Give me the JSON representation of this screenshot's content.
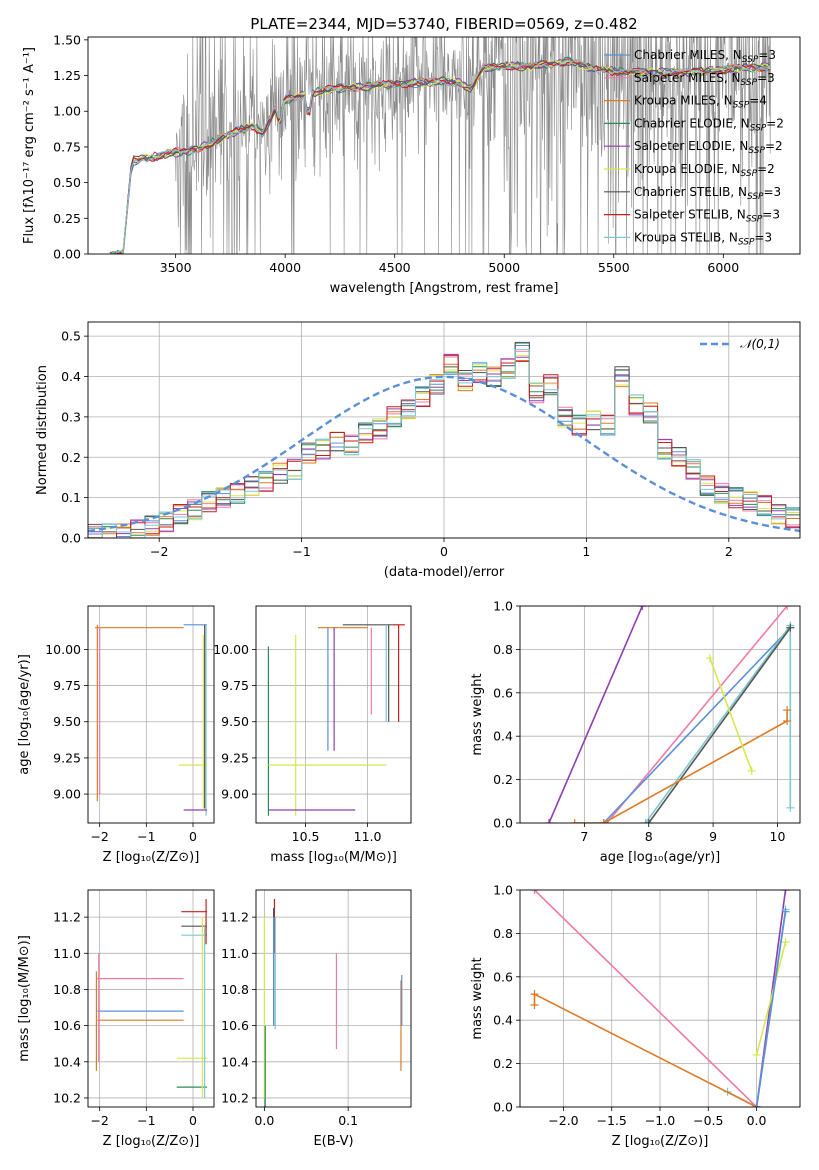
{
  "colors": {
    "chabrier_miles": "#5b8fd9",
    "salpeter_miles": "#f07aa6",
    "kroupa_miles": "#e07a24",
    "chabrier_elodie": "#2e8b57",
    "salpeter_elodie": "#8e3fb0",
    "kroupa_elodie": "#d6e84e",
    "chabrier_stelib": "#555555",
    "salpeter_stelib": "#c81f1f",
    "kroupa_stelib": "#7ec8d0",
    "data": "#8a8a8a",
    "gauss": "#5b8fd9"
  },
  "legend": [
    {
      "name": "Chabrier MILES",
      "n": "3",
      "color_key": "chabrier_miles"
    },
    {
      "name": "Salpeter MILES",
      "n": "3",
      "color_key": "salpeter_miles"
    },
    {
      "name": "Kroupa MILES",
      "n": "4",
      "color_key": "kroupa_miles"
    },
    {
      "name": "Chabrier ELODIE",
      "n": "2",
      "color_key": "chabrier_elodie"
    },
    {
      "name": "Salpeter ELODIE",
      "n": "2",
      "color_key": "salpeter_elodie"
    },
    {
      "name": "Kroupa ELODIE",
      "n": "2",
      "color_key": "kroupa_elodie"
    },
    {
      "name": "Chabrier STELIB",
      "n": "3",
      "color_key": "chabrier_stelib"
    },
    {
      "name": "Salpeter STELIB",
      "n": "3",
      "color_key": "salpeter_stelib"
    },
    {
      "name": "Kroupa STELIB",
      "n": "3",
      "color_key": "kroupa_stelib"
    }
  ],
  "chart_data": [
    {
      "id": "spectrum",
      "type": "line",
      "title": "PLATE=2344, MJD=53740, FIBERID=0569, z=0.482",
      "xlabel": "wavelength [Angstrom, rest frame]",
      "ylabel": "Flux [fλ10⁻¹⁷ erg cm⁻² s⁻¹ A⁻¹]",
      "xlim": [
        3100,
        6350
      ],
      "ylim": [
        0,
        1.52
      ],
      "xticks": [
        3500,
        4000,
        4500,
        5000,
        5500,
        6000
      ],
      "yticks": [
        0.0,
        0.25,
        0.5,
        0.75,
        1.0,
        1.25,
        1.5
      ],
      "grid": false,
      "legend_position": "top-right",
      "model_continuum": {
        "x": [
          3200,
          3260,
          3300,
          3350,
          3400,
          3450,
          3500,
          3550,
          3600,
          3650,
          3700,
          3750,
          3800,
          3850,
          3900,
          3950,
          4000,
          4050,
          4100,
          4150,
          4200,
          4300,
          4400,
          4500,
          4600,
          4700,
          4800,
          4850,
          4900,
          5000,
          5100,
          5200,
          5300,
          5400,
          5500,
          5600,
          5700,
          5800,
          5900,
          6000,
          6100,
          6200
        ],
        "y": [
          0.0,
          0.0,
          0.65,
          0.67,
          0.68,
          0.7,
          0.71,
          0.72,
          0.74,
          0.77,
          0.8,
          0.84,
          0.87,
          0.9,
          0.85,
          1.0,
          1.08,
          1.1,
          1.12,
          1.14,
          1.15,
          1.17,
          1.18,
          1.19,
          1.2,
          1.21,
          1.2,
          1.15,
          1.3,
          1.32,
          1.31,
          1.33,
          1.35,
          1.3,
          1.28,
          1.27,
          1.27,
          1.27,
          1.28,
          1.29,
          1.3,
          1.31
        ]
      },
      "data_range": [
        3200,
        6220
      ]
    },
    {
      "id": "residuals",
      "type": "histogram",
      "xlabel": "(data-model)/error",
      "ylabel": "Normed distribution",
      "xlim": [
        -2.5,
        2.5
      ],
      "ylim": [
        0,
        0.535
      ],
      "xticks": [
        -2,
        -1,
        0,
        1,
        2
      ],
      "yticks": [
        0.0,
        0.1,
        0.2,
        0.3,
        0.4,
        0.5
      ],
      "grid": true,
      "legend": "𝒩(0,1)",
      "legend_position": "top-right",
      "bin_edges_start": -2.5,
      "bin_width": 0.1,
      "values": [
        0.01,
        0.01,
        0.01,
        0.02,
        0.03,
        0.04,
        0.06,
        0.07,
        0.09,
        0.1,
        0.11,
        0.13,
        0.14,
        0.16,
        0.17,
        0.21,
        0.22,
        0.24,
        0.23,
        0.26,
        0.27,
        0.3,
        0.32,
        0.35,
        0.38,
        0.43,
        0.39,
        0.41,
        0.4,
        0.42,
        0.46,
        0.36,
        0.38,
        0.3,
        0.28,
        0.29,
        0.28,
        0.4,
        0.33,
        0.31,
        0.22,
        0.2,
        0.17,
        0.13,
        0.11,
        0.1,
        0.09,
        0.08,
        0.06,
        0.05,
        0.04
      ]
    },
    {
      "id": "z_age",
      "type": "errorbar",
      "xlabel": "Z [log₁₀(Z/Z⊙)]",
      "ylabel": "age  [log₁₀(age/yr)]",
      "xlim": [
        -2.25,
        0.45
      ],
      "ylim": [
        8.8,
        10.3
      ],
      "xticks": [
        -2,
        -1,
        0
      ],
      "yticks": [
        9.0,
        9.25,
        9.5,
        9.75,
        10.0
      ],
      "grid": true
    },
    {
      "id": "mass_age",
      "type": "errorbar",
      "xlabel": "mass [log₁₀(M/M⊙)]",
      "xlim": [
        10.1,
        11.35
      ],
      "ylim": [
        8.8,
        10.3
      ],
      "xticks": [
        10.5,
        11.0
      ],
      "yticks": [
        9.0,
        9.25,
        9.5,
        9.75,
        10.0
      ],
      "grid": true
    },
    {
      "id": "age_weight",
      "type": "line",
      "xlabel": "age  [log₁₀(age/yr)]",
      "ylabel": "mass weight",
      "xlim": [
        6.0,
        10.35
      ],
      "ylim": [
        0,
        1.0
      ],
      "xticks": [
        7,
        8,
        9,
        10
      ],
      "yticks": [
        0.0,
        0.2,
        0.4,
        0.6,
        0.8,
        1.0
      ],
      "grid": true
    },
    {
      "id": "z_mass",
      "type": "errorbar",
      "xlabel": "Z [log₁₀(Z/Z⊙)]",
      "ylabel": "mass [log₁₀(M/M⊙)]",
      "xlim": [
        -2.25,
        0.45
      ],
      "ylim": [
        10.15,
        11.35
      ],
      "xticks": [
        -2,
        -1,
        0
      ],
      "yticks": [
        10.2,
        10.4,
        10.6,
        10.8,
        11.0,
        11.2
      ],
      "grid": true
    },
    {
      "id": "ebv_mass",
      "type": "errorbar",
      "xlabel": "E(B-V)",
      "xlim": [
        -0.01,
        0.175
      ],
      "ylim": [
        10.15,
        11.35
      ],
      "xticks": [
        0.0,
        0.1
      ],
      "yticks": [
        10.2,
        10.4,
        10.6,
        10.8,
        11.0,
        11.2
      ],
      "grid": true
    },
    {
      "id": "z_weight",
      "type": "line",
      "xlabel": "Z [log₁₀(Z/Z⊙)]",
      "ylabel": "mass weight",
      "xlim": [
        -2.45,
        0.45
      ],
      "ylim": [
        0,
        1.0
      ],
      "xticks": [
        -2.0,
        -1.5,
        -1.0,
        -0.5,
        0.0
      ],
      "yticks": [
        0.0,
        0.2,
        0.4,
        0.6,
        0.8,
        1.0
      ],
      "grid": true
    }
  ]
}
